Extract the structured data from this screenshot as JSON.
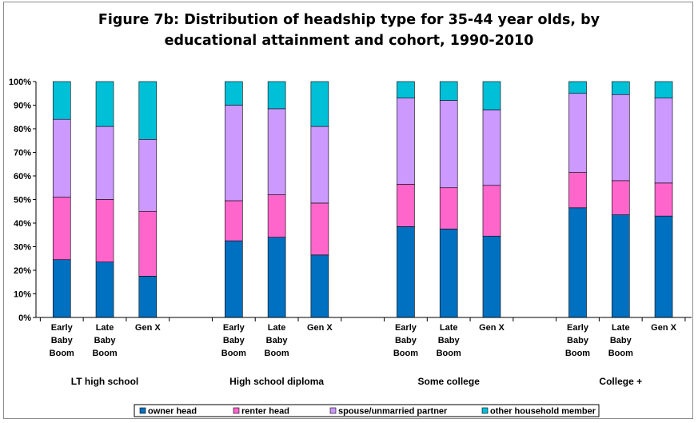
{
  "chart_data": {
    "type": "bar",
    "stacked": true,
    "title_lines": [
      "Figure 7b: Distribution of headship type for 35-44 year olds, by",
      "educational attainment and cohort, 1990-2010"
    ],
    "groups": [
      "LT high school",
      "High school diploma",
      "Some college",
      "College +"
    ],
    "cohorts": [
      [
        "Early",
        "Baby",
        "Boom"
      ],
      [
        "Late",
        "Baby",
        "Boom"
      ],
      [
        "Gen X"
      ]
    ],
    "y_ticks": [
      "0%",
      "10%",
      "20%",
      "30%",
      "40%",
      "50%",
      "60%",
      "70%",
      "80%",
      "90%",
      "100%"
    ],
    "ylim": [
      0,
      100
    ],
    "grid": false,
    "legend_position": "bottom",
    "series": [
      {
        "name": "owner head",
        "color": "#0070c0",
        "values": [
          24.5,
          23.5,
          17.5,
          32.5,
          34,
          26.5,
          38.5,
          37.5,
          34.5,
          46.5,
          43.5,
          43
        ]
      },
      {
        "name": "renter head",
        "color": "#ff66cc",
        "values": [
          26.5,
          26.5,
          27.5,
          17,
          18,
          22,
          18,
          17.5,
          21.5,
          15,
          14.5,
          14
        ]
      },
      {
        "name": "spouse/unmarried partner",
        "color": "#cc99ff",
        "values": [
          33,
          31,
          30.5,
          40.5,
          36.5,
          32.5,
          36.5,
          37,
          32,
          33.5,
          36.5,
          36
        ]
      },
      {
        "name": "other household member",
        "color": "#00c0d8",
        "values": [
          16,
          19,
          24.5,
          10,
          11.5,
          19,
          7,
          8,
          12,
          5,
          5.5,
          7
        ]
      }
    ]
  }
}
